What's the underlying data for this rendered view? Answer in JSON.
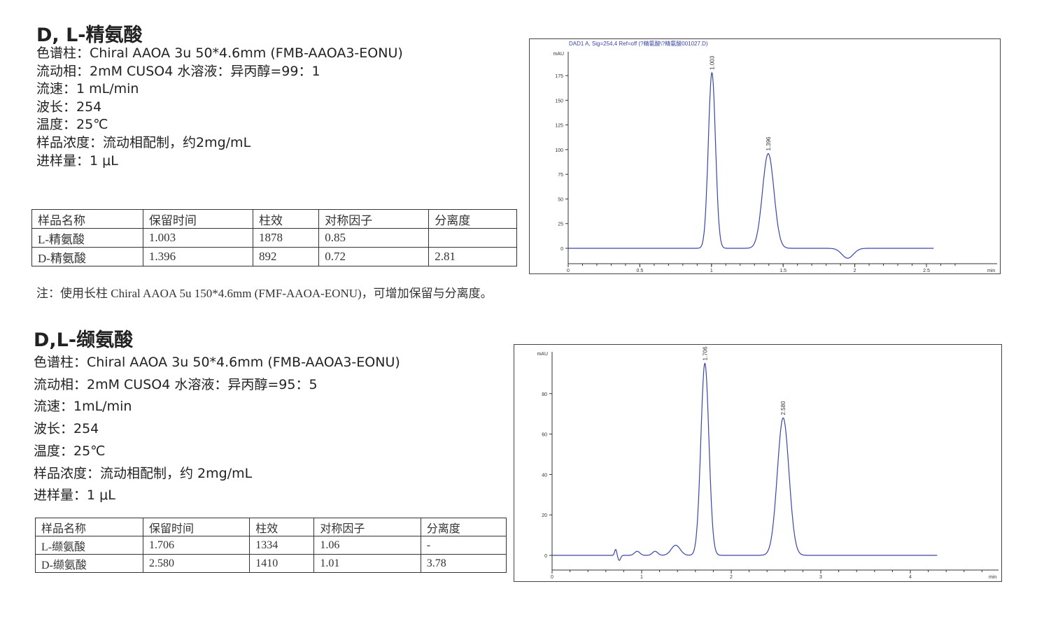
{
  "sections": [
    {
      "title": "D, L-精氨酸",
      "info": [
        "色谱柱：Chiral AAOA 3u 50*4.6mm (FMB-AAOA3-EONU)",
        "流动相：2mM CUSO4 水溶液：异丙醇=99：1",
        "流速：1 mL/min",
        "波长：254",
        "温度：25℃",
        "样品浓度：流动相配制，约2mg/mL",
        "进样量：1 μL"
      ],
      "table": {
        "headers": [
          "样品名称",
          "保留时间",
          "柱效",
          "对称因子",
          "分离度"
        ],
        "rows": [
          [
            "L-精氨酸",
            "1.003",
            "1878",
            "0.85",
            ""
          ],
          [
            "D-精氨酸",
            "1.396",
            "892",
            "0.72",
            "2.81"
          ]
        ]
      },
      "note": "注：使用长柱 Chiral AAOA 5u 150*4.6mm (FMF-AAOA-EONU)，可增加保留与分离度。"
    },
    {
      "title": "D,L-缬氨酸",
      "info": [
        "色谱柱：Chiral AAOA 3u 50*4.6mm (FMB-AAOA3-EONU)",
        "流动相：2mM CUSO4 水溶液：异丙醇=95：5",
        "流速：1mL/min",
        "波长：254",
        "温度：25℃",
        "样品浓度：流动相配制，约 2mg/mL",
        "进样量：1 μL"
      ],
      "table": {
        "headers": [
          "样品名称",
          "保留时间",
          "柱效",
          "对称因子",
          "分离度"
        ],
        "rows": [
          [
            "L-缬氨酸",
            "1.706",
            "1334",
            "1.06",
            "-"
          ],
          [
            "D-缬氨酸",
            "2.580",
            "1410",
            "1.01",
            "3.78"
          ]
        ]
      }
    }
  ],
  "chart_data": [
    {
      "type": "line",
      "title": "DAD1 A, Sig=254,4 Ref=off (?精氨酸\\?精氨酸001027.D)",
      "ylabel": "mAU",
      "xlabel": "min",
      "xlim": [
        0,
        2.75
      ],
      "ylim": [
        -15,
        195
      ],
      "xticks": [
        "0",
        "0.5",
        "1",
        "1.5",
        "2",
        "2.5"
      ],
      "yticks": [
        "0",
        "25",
        "50",
        "75",
        "100",
        "125",
        "150",
        "175"
      ],
      "color": "#3a46a8",
      "trace_end": 2.55,
      "peaks": [
        {
          "label": "1.003",
          "rt": 1.003,
          "height": 178,
          "width": 0.025
        },
        {
          "label": "1.396",
          "rt": 1.396,
          "height": 96,
          "width": 0.04
        },
        {
          "label": "",
          "rt": 1.95,
          "height": -10,
          "width": 0.04
        }
      ]
    },
    {
      "type": "line",
      "title": "",
      "ylabel": "mAU",
      "xlabel": "min",
      "xlim": [
        0,
        4.9
      ],
      "ylim": [
        -10,
        100
      ],
      "xticks": [
        "0",
        "1",
        "2",
        "3",
        "4"
      ],
      "yticks": [
        "0",
        "20",
        "40",
        "60",
        "80"
      ],
      "color": "#3a46a8",
      "trace_end": 4.3,
      "peaks": [
        {
          "label": "",
          "rt": 0.71,
          "height": 3,
          "width": 0.012
        },
        {
          "label": "",
          "rt": 0.75,
          "height": -2.5,
          "width": 0.015
        },
        {
          "label": "",
          "rt": 0.95,
          "height": 2,
          "width": 0.03
        },
        {
          "label": "",
          "rt": 1.15,
          "height": 2,
          "width": 0.03
        },
        {
          "label": "",
          "rt": 1.38,
          "height": 5,
          "width": 0.05
        },
        {
          "label": "1.706",
          "rt": 1.706,
          "height": 95,
          "width": 0.045
        },
        {
          "label": "2.580",
          "rt": 2.58,
          "height": 68,
          "width": 0.065
        }
      ]
    }
  ]
}
